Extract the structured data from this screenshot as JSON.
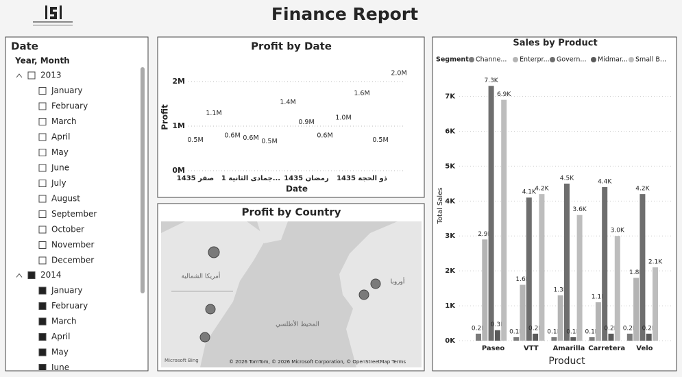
{
  "header": {
    "title": "Finance Report"
  },
  "slicer": {
    "title": "Date",
    "hierarchy": "Year, Month",
    "years": [
      {
        "label": "2013",
        "checked": false,
        "months": [
          "January",
          "February",
          "March",
          "April",
          "May",
          "June",
          "July",
          "August",
          "September",
          "October",
          "November",
          "December"
        ]
      },
      {
        "label": "2014",
        "checked": true,
        "months": [
          "January",
          "February",
          "March",
          "April",
          "May",
          "June"
        ]
      }
    ]
  },
  "map": {
    "title": "Profit by Country",
    "labels": [
      "أمريكا الشمالية",
      "المحيط الأطلسي",
      "أوروبا"
    ],
    "logo": "Microsoft Bing",
    "attribution": "© 2026 TomTom, © 2026 Microsoft Corporation, © OpenStreetMap Terms"
  },
  "chart_data": [
    {
      "type": "line",
      "title": "Profit by Date",
      "x_label": "Date",
      "y_label": "Profit",
      "color": "#3a3a3a",
      "categories": [
        "صفر 1435",
        null,
        null,
        "جمادى الثانية 1...",
        null,
        null,
        "رمضان 1435",
        null,
        null,
        "ذو الحجة 1435",
        null,
        null
      ],
      "values": [
        0.5,
        1.1,
        0.6,
        0.55,
        0.47,
        1.35,
        0.9,
        0.6,
        1.0,
        1.55,
        0.5,
        2.0
      ],
      "value_labels": [
        "0.5M",
        "1.1M",
        "0.6M",
        "0.6M",
        "0.5M",
        "1.4M",
        "0.9M",
        "0.6M",
        "1.0M",
        "1.6M",
        "0.5M",
        "2.0M"
      ],
      "ylim": [
        0,
        2.4
      ],
      "yticks": [
        {
          "value": 0,
          "label": "0M"
        },
        {
          "value": 1,
          "label": "1M"
        },
        {
          "value": 2,
          "label": "2M"
        }
      ],
      "grid": true
    },
    {
      "type": "bar",
      "title": "Sales by Product",
      "x_label": "Product",
      "y_label": "Total Sales",
      "legend_title": "Segment",
      "categories": [
        "Paseo",
        "VTT",
        "Amarilla",
        "Carretera",
        "Velo"
      ],
      "series": [
        {
          "name": "Channe...",
          "color": "#7a7a7a",
          "values": [
            0.2,
            0.1,
            0.1,
            0.1,
            0.2
          ],
          "value_labels": [
            "0.2K",
            "0.1K",
            "0.1K",
            "0.1K",
            "0.2K"
          ]
        },
        {
          "name": "Enterpr...",
          "color": "#b4b4b4",
          "values": [
            2.9,
            1.6,
            1.3,
            1.1,
            1.8
          ],
          "value_labels": [
            "2.9K",
            "1.6K",
            "1.3K",
            "1.1K",
            "1.8K"
          ]
        },
        {
          "name": "Govern...",
          "color": "#6e6e6e",
          "values": [
            7.3,
            4.1,
            4.5,
            4.4,
            4.2
          ],
          "value_labels": [
            "7.3K",
            "4.1K",
            "4.5K",
            "4.4K",
            "4.2K"
          ]
        },
        {
          "name": "Midmar...",
          "color": "#5a5a5a",
          "values": [
            0.3,
            0.2,
            0.1,
            0.2,
            0.2
          ],
          "value_labels": [
            "0.3K",
            "0.2K",
            "0.1K",
            "0.2K",
            "0.2K"
          ]
        },
        {
          "name": "Small B...",
          "color": "#bdbdbd",
          "values": [
            6.9,
            4.2,
            3.6,
            3.0,
            2.1
          ],
          "value_labels": [
            "6.9K",
            "4.2K",
            "3.6K",
            "3.0K",
            "2.1K"
          ]
        }
      ],
      "ylim": [
        0,
        7.6
      ],
      "yticks": [
        {
          "value": 0,
          "label": "0K"
        },
        {
          "value": 1,
          "label": "1K"
        },
        {
          "value": 2,
          "label": "2K"
        },
        {
          "value": 3,
          "label": "3K"
        },
        {
          "value": 4,
          "label": "4K"
        },
        {
          "value": 5,
          "label": "5K"
        },
        {
          "value": 6,
          "label": "6K"
        },
        {
          "value": 7,
          "label": "7K"
        }
      ],
      "grid": true
    }
  ]
}
